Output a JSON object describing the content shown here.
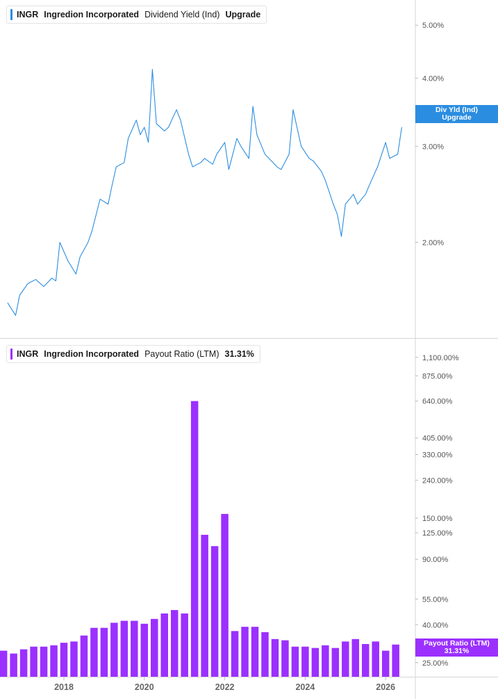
{
  "top_panel": {
    "legend": {
      "ticker": "INGR",
      "company": "Ingredion Incorporated",
      "metric": "Dividend Yield (Ind)",
      "value": "Upgrade"
    },
    "tag": {
      "line1": "Div Yld (Ind)",
      "line2": "Upgrade"
    },
    "line_color": "#2b8de0"
  },
  "bottom_panel": {
    "legend": {
      "ticker": "INGR",
      "company": "Ingredion Incorporated",
      "metric": "Payout Ratio (LTM)",
      "value": "31.31%"
    },
    "tag": {
      "line1": "Payout Ratio (LTM)",
      "line2": "31.31%"
    },
    "bar_color": "#9b30ff"
  },
  "chart_data": [
    {
      "type": "line",
      "scale": "log",
      "y_ticks": [
        "5.00%",
        "4.00%",
        "3.00%",
        "2.00%"
      ],
      "y_tick_values": [
        5.0,
        4.0,
        3.0,
        2.0
      ],
      "ylim": [
        1.4,
        5.4
      ],
      "series": [
        {
          "x": [
            2016.6,
            2016.8,
            2016.9,
            2017.1,
            2017.3,
            2017.5,
            2017.7,
            2017.8,
            2017.9,
            2018.1,
            2018.3,
            2018.4,
            2018.6,
            2018.7,
            2018.9,
            2019.1,
            2019.2,
            2019.3,
            2019.5,
            2019.6,
            2019.8,
            2019.9,
            2020.0,
            2020.1,
            2020.2,
            2020.3,
            2020.5,
            2020.6,
            2020.8,
            2020.9,
            2021.1,
            2021.2,
            2021.4,
            2021.5,
            2021.7,
            2021.8,
            2022.0,
            2022.1,
            2022.3,
            2022.4,
            2022.6,
            2022.7,
            2022.8,
            2023.0,
            2023.1,
            2023.3,
            2023.4,
            2023.6,
            2023.7,
            2023.9,
            2024.1,
            2024.2,
            2024.4,
            2024.5,
            2024.7,
            2024.8,
            2024.9,
            2025.0,
            2025.2,
            2025.3,
            2025.5,
            2025.6,
            2025.8,
            2026.0,
            2026.1,
            2026.3,
            2026.4
          ],
          "values": [
            1.55,
            1.47,
            1.6,
            1.68,
            1.71,
            1.66,
            1.72,
            1.7,
            2.0,
            1.85,
            1.75,
            1.88,
            2.0,
            2.1,
            2.4,
            2.35,
            2.55,
            2.75,
            2.8,
            3.1,
            3.35,
            3.15,
            3.25,
            3.05,
            4.15,
            3.3,
            3.2,
            3.25,
            3.5,
            3.35,
            2.9,
            2.75,
            2.8,
            2.85,
            2.78,
            2.9,
            3.05,
            2.72,
            3.1,
            3.0,
            2.85,
            3.55,
            3.15,
            2.9,
            2.85,
            2.75,
            2.72,
            2.9,
            3.5,
            3.0,
            2.85,
            2.82,
            2.7,
            2.6,
            2.35,
            2.25,
            2.05,
            2.35,
            2.45,
            2.35,
            2.45,
            2.55,
            2.75,
            3.05,
            2.85,
            2.9,
            3.25
          ]
        }
      ]
    },
    {
      "type": "bar",
      "scale": "log",
      "y_ticks": [
        "1,100.00%",
        "875.00%",
        "640.00%",
        "405.00%",
        "330.00%",
        "240.00%",
        "150.00%",
        "125.00%",
        "90.00%",
        "55.00%",
        "40.00%",
        "25.00%"
      ],
      "y_tick_values": [
        1100,
        875,
        640,
        405,
        330,
        240,
        150,
        125,
        90,
        55,
        40,
        25
      ],
      "ylim": [
        21,
        1250
      ],
      "x_ticks": [
        "2018",
        "2020",
        "2022",
        "2024",
        "2026"
      ],
      "x_tick_values": [
        2018,
        2020,
        2022,
        2024,
        2026
      ],
      "x": [
        2016.5,
        2016.75,
        2017.0,
        2017.25,
        2017.5,
        2017.75,
        2018.0,
        2018.25,
        2018.5,
        2018.75,
        2019.0,
        2019.25,
        2019.5,
        2019.75,
        2020.0,
        2020.25,
        2020.5,
        2020.75,
        2021.0,
        2021.25,
        2021.5,
        2021.75,
        2022.0,
        2022.25,
        2022.5,
        2022.75,
        2023.0,
        2023.25,
        2023.5,
        2023.75,
        2024.0,
        2024.25,
        2024.5,
        2024.75,
        2025.0,
        2025.25,
        2025.5,
        2025.75,
        2026.0,
        2026.25
      ],
      "values": [
        29,
        28,
        29.5,
        30.5,
        30.5,
        31,
        32,
        32.5,
        35,
        38.5,
        38.5,
        41,
        42,
        42,
        40.5,
        43,
        46,
        48,
        46,
        640,
        122,
        106,
        158,
        37,
        39,
        39,
        36.5,
        33.5,
        33,
        30.5,
        30.5,
        30,
        31,
        30,
        32.5,
        33.5,
        31.5,
        32.5,
        29,
        31.3
      ]
    }
  ]
}
